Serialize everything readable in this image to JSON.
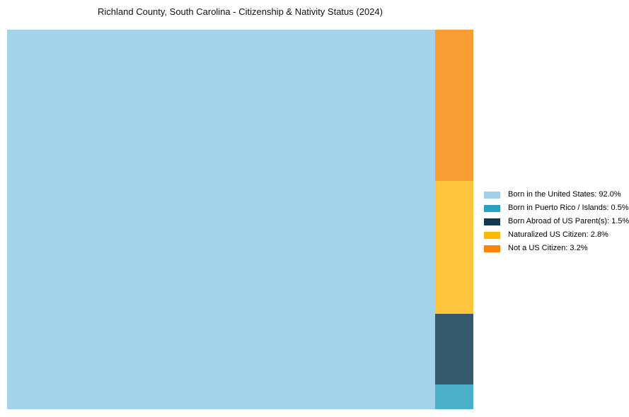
{
  "header": {
    "title": "Richland County, South Carolina - Citizenship & Nativity Status (2024)"
  },
  "chart_data": {
    "type": "treemap",
    "title": "Richland County, South Carolina - Citizenship & Nativity Status (2024)",
    "categories": [
      "Born in the United States",
      "Born in Puerto Rico / Islands",
      "Born Abroad of US Parent(s)",
      "Naturalized US Citizen",
      "Not a US Citizen"
    ],
    "values": [
      92.0,
      0.5,
      1.5,
      2.8,
      3.2
    ],
    "unit": "%",
    "legend_position": "right-center",
    "layout_hint": "single large block on left (92%), remaining four segments stacked in a narrow right column ordered top-to-bottom: 3.2%, 2.8%, 1.5%, 0.5%",
    "segments": [
      {
        "label": "Born in the United States",
        "pct": 92.0,
        "display": "Born in the United States: 92.0%",
        "block_color": "#a4d3ea",
        "legend_color": "#a0d1e7"
      },
      {
        "label": "Born in Puerto Rico / Islands",
        "pct": 0.5,
        "display": "Born in Puerto Rico / Islands: 0.5%",
        "block_color": "#4cb1c8",
        "legend_color": "#2aa2bf"
      },
      {
        "label": "Born Abroad of US Parent(s)",
        "pct": 1.5,
        "display": "Born Abroad of US Parent(s): 1.5%",
        "block_color": "#36596b",
        "legend_color": "#113a50"
      },
      {
        "label": "Naturalized US Citizen",
        "pct": 2.8,
        "display": "Naturalized US Citizen: 2.8%",
        "block_color": "#fec53e",
        "legend_color": "#fdb80a"
      },
      {
        "label": "Not a US Citizen",
        "pct": 3.2,
        "display": "Not a US Citizen: 3.2%",
        "block_color": "#f99e35",
        "legend_color": "#f8840b"
      }
    ]
  }
}
